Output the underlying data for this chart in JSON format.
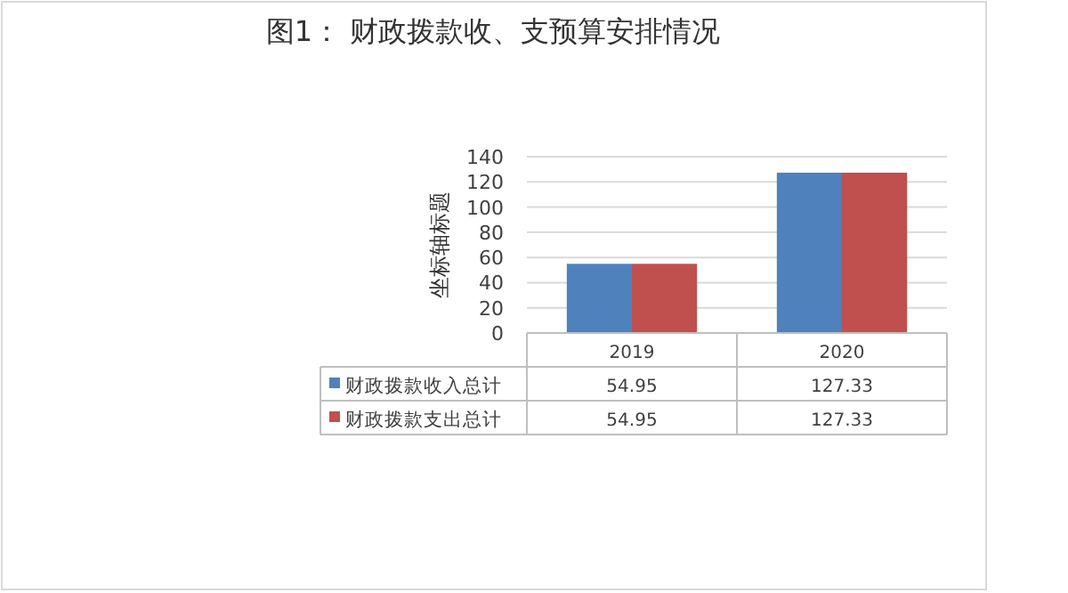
{
  "chart_data": {
    "type": "bar",
    "title": "图1： 财政拨款收、支预算安排情况",
    "ylabel": "坐标轴标题",
    "categories": [
      "2019",
      "2020"
    ],
    "series": [
      {
        "name": "财政拨款收入总计",
        "color": "#4f81bd",
        "values": [
          54.95,
          127.33
        ]
      },
      {
        "name": "财政拨款支出总计",
        "color": "#c0504d",
        "values": [
          54.95,
          127.33
        ]
      }
    ],
    "ylim": [
      0,
      140
    ],
    "yticks": [
      0,
      20,
      40,
      60,
      80,
      100,
      120,
      140
    ],
    "grid": "y",
    "legend": "bottom",
    "data_labels": true
  }
}
